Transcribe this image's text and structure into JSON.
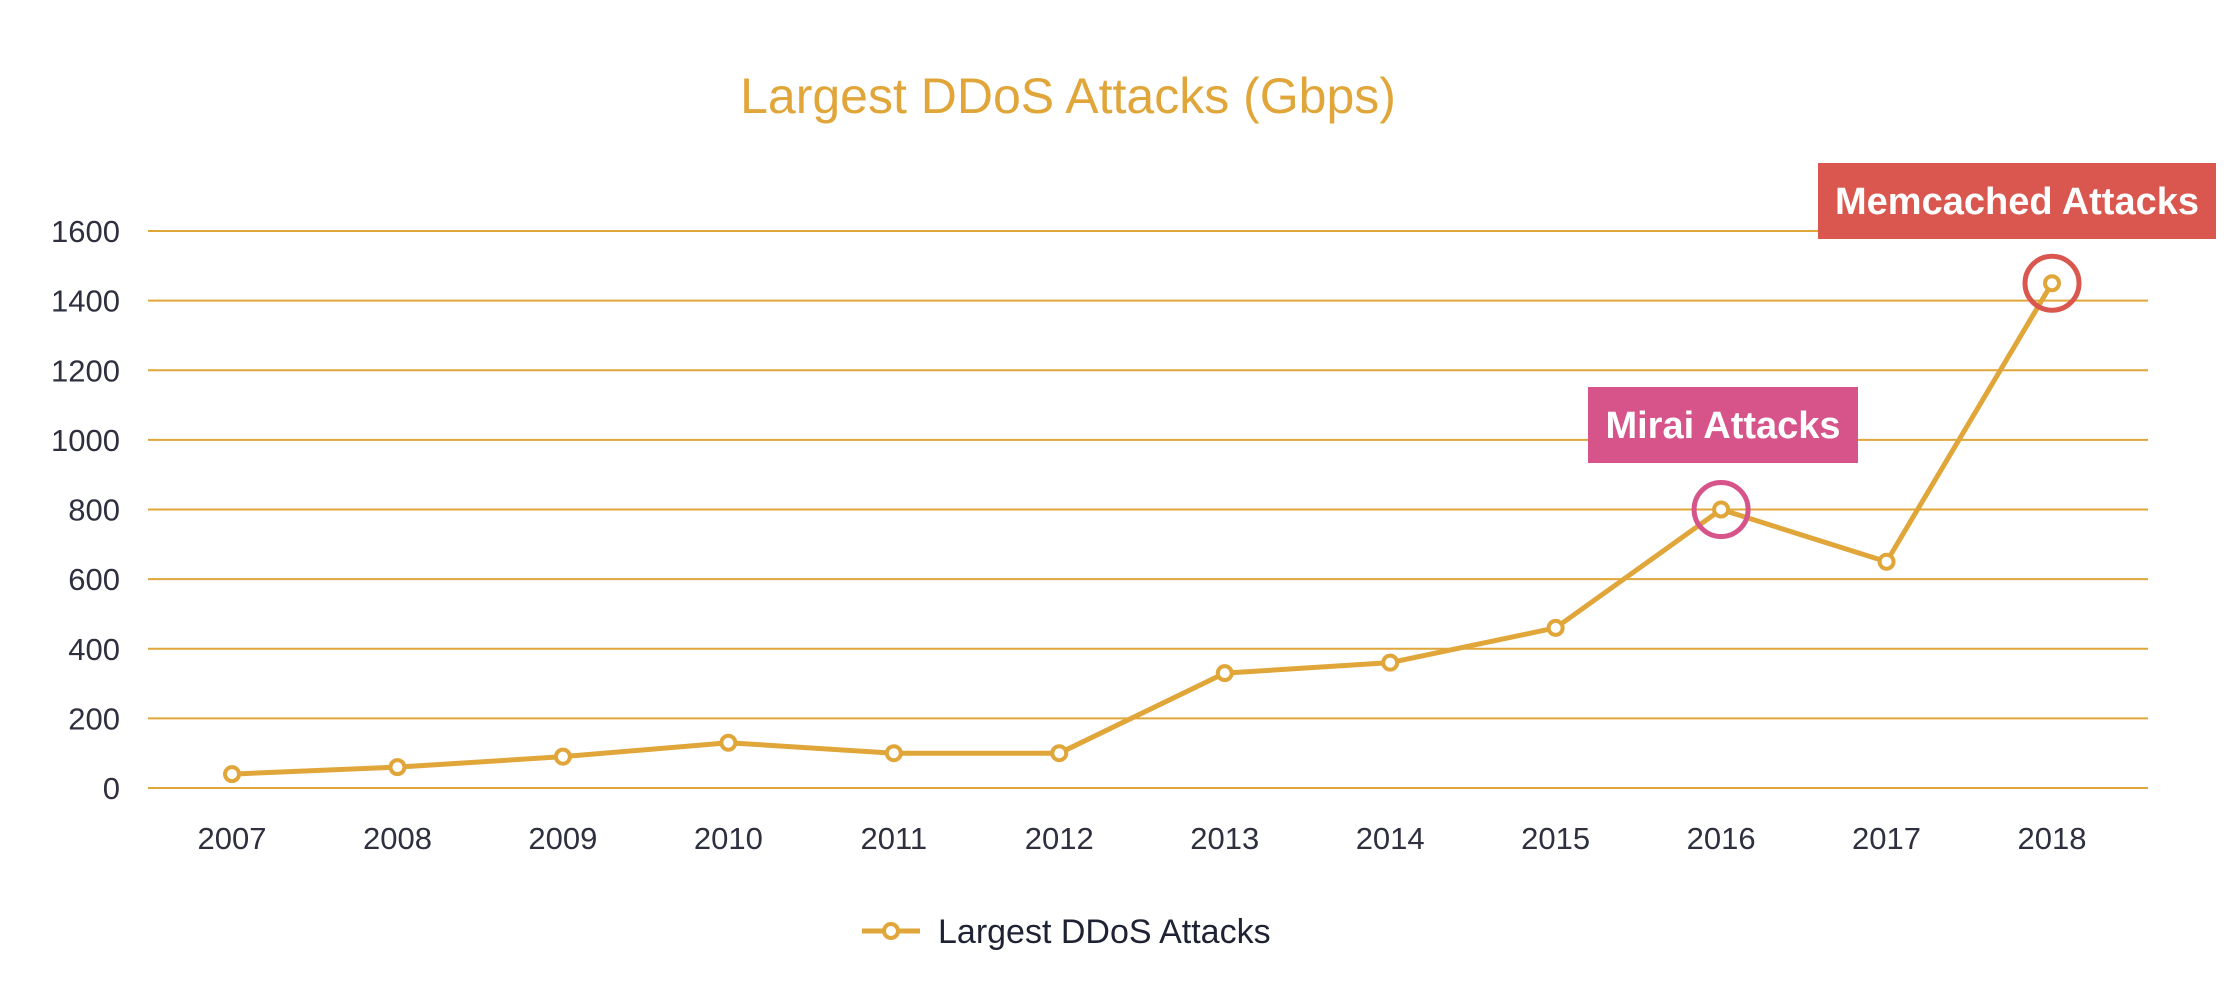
{
  "chart_data": {
    "type": "line",
    "title": "Largest DDoS Attacks (Gbps)",
    "xlabel": "",
    "ylabel": "",
    "categories": [
      "2007",
      "2008",
      "2009",
      "2010",
      "2011",
      "2012",
      "2013",
      "2014",
      "2015",
      "2016",
      "2017",
      "2018"
    ],
    "series": [
      {
        "name": "Largest DDoS Attacks",
        "values": [
          40,
          60,
          90,
          130,
          100,
          100,
          330,
          360,
          460,
          800,
          650,
          1450
        ],
        "color": "#e0a63a"
      }
    ],
    "ylim": [
      0,
      1600
    ],
    "yticks": [
      "0",
      "200",
      "400",
      "600",
      "800",
      "1000",
      "1200",
      "1400",
      "1600"
    ],
    "grid": "horizontal",
    "legend_position": "bottom-center",
    "annotations": [
      {
        "text": "Mirai Attacks",
        "category": "2016",
        "color": "#d6548a"
      },
      {
        "text": "Memcached Attacks",
        "category": "2018",
        "color": "#d9574e"
      }
    ]
  }
}
